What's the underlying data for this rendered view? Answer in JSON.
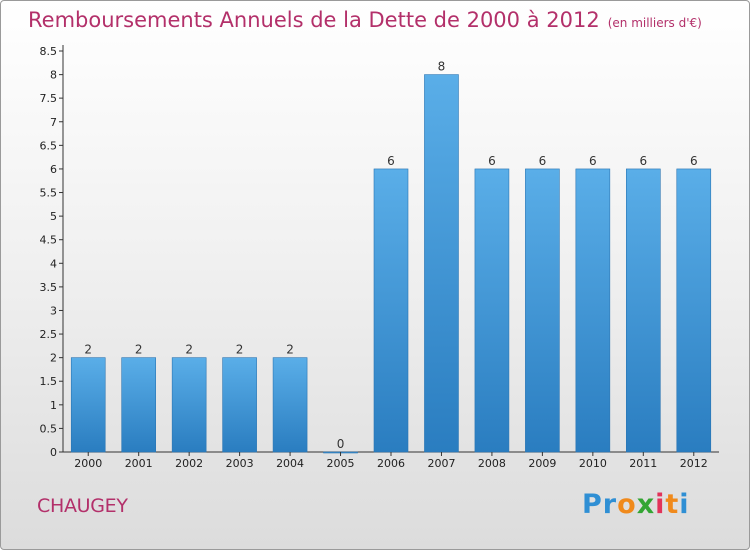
{
  "title": "Remboursements Annuels de la Dette de 2000 à 2012",
  "title_unit": "(en milliers d'€)",
  "commune": "CHAUGEY",
  "logo": {
    "text": "Proxiti",
    "letters": [
      "P",
      "r",
      "o",
      "x",
      "i",
      "t",
      "i"
    ]
  },
  "colors": {
    "title": "#b3306a",
    "bar_top": "#5aaee8",
    "bar_bottom": "#2a7dc0",
    "logo": [
      "#2f8fd4",
      "#2f8fd4",
      "#f08a1c",
      "#33a533",
      "#e2335a",
      "#f08a1c",
      "#2f8fd4"
    ]
  },
  "chart_data": {
    "type": "bar",
    "categories": [
      "2000",
      "2001",
      "2002",
      "2003",
      "2004",
      "2005",
      "2006",
      "2007",
      "2008",
      "2009",
      "2010",
      "2011",
      "2012"
    ],
    "values": [
      2,
      2,
      2,
      2,
      2,
      0,
      6,
      8,
      6,
      6,
      6,
      6,
      6
    ],
    "data_labels": [
      "2",
      "2",
      "2",
      "2",
      "2",
      "0",
      "6",
      "8",
      "6",
      "6",
      "6",
      "6",
      "6"
    ],
    "yticks": [
      "0",
      "0.5",
      "1",
      "1.5",
      "2",
      "2.5",
      "3",
      "3.5",
      "4",
      "4.5",
      "5",
      "5.5",
      "6",
      "6.5",
      "7",
      "7.5",
      "8",
      "8.5"
    ],
    "ylim": [
      0,
      8.5
    ],
    "grid": false,
    "legend": "none"
  }
}
